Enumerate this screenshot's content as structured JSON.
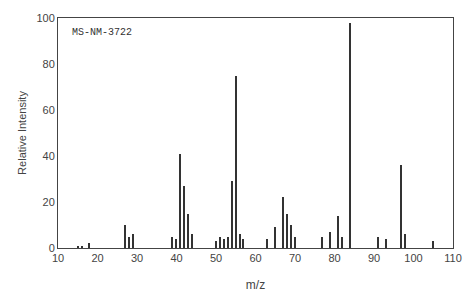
{
  "chart_data": {
    "type": "bar",
    "x": [
      15,
      16,
      18,
      27,
      28,
      29,
      39,
      40,
      41,
      42,
      43,
      44,
      50,
      51,
      52,
      53,
      54,
      55,
      56,
      57,
      63,
      65,
      67,
      68,
      69,
      70,
      77,
      79,
      81,
      82,
      84,
      91,
      93,
      97,
      98,
      105
    ],
    "values": [
      1,
      1,
      2,
      10,
      5,
      6,
      5,
      4,
      41,
      27,
      15,
      6,
      3,
      5,
      4,
      5,
      29,
      75,
      6,
      4,
      4,
      9,
      22,
      15,
      10,
      5,
      5,
      7,
      14,
      5,
      98,
      5,
      4,
      36,
      6,
      3
    ],
    "color": "#333333",
    "xlabel": "m/z",
    "ylabel": "Relative Intensity",
    "annotation": "MS-NM-3722",
    "xlim": [
      10,
      110
    ],
    "ylim": [
      0,
      100
    ],
    "xticks": [
      10,
      20,
      30,
      40,
      50,
      60,
      70,
      80,
      90,
      100,
      110
    ],
    "yticks": [
      0,
      20,
      40,
      60,
      80,
      100
    ],
    "grid": false
  }
}
